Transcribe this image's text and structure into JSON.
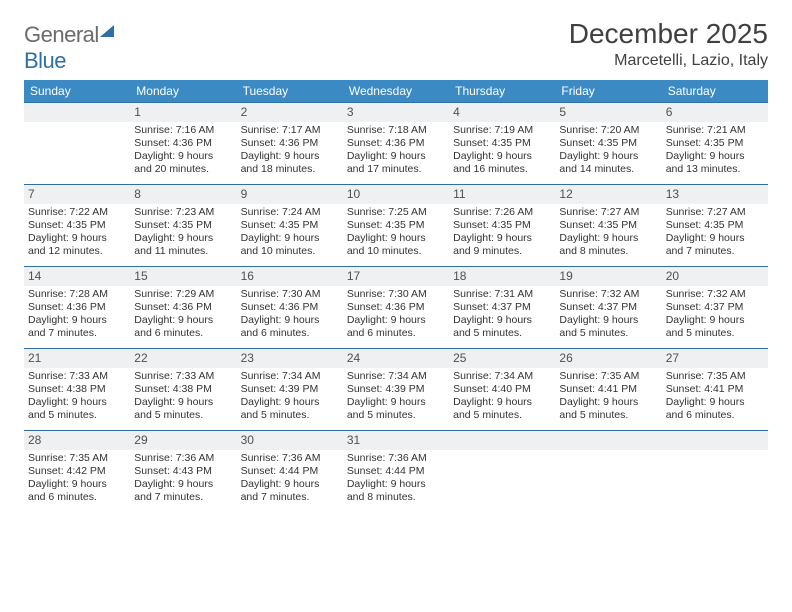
{
  "logo": {
    "word1": "General",
    "word2": "Blue"
  },
  "title": "December 2025",
  "location": "Marcetelli, Lazio, Italy",
  "colors": {
    "header_bg": "#3b8ac4",
    "daynum_bg": "#eef0f2",
    "rule": "#2f6fa8",
    "text": "#333333"
  },
  "dows": [
    "Sunday",
    "Monday",
    "Tuesday",
    "Wednesday",
    "Thursday",
    "Friday",
    "Saturday"
  ],
  "weeks": [
    [
      null,
      {
        "n": "1",
        "sr": "Sunrise: 7:16 AM",
        "ss": "Sunset: 4:36 PM",
        "dl": "Daylight: 9 hours and 20 minutes."
      },
      {
        "n": "2",
        "sr": "Sunrise: 7:17 AM",
        "ss": "Sunset: 4:36 PM",
        "dl": "Daylight: 9 hours and 18 minutes."
      },
      {
        "n": "3",
        "sr": "Sunrise: 7:18 AM",
        "ss": "Sunset: 4:36 PM",
        "dl": "Daylight: 9 hours and 17 minutes."
      },
      {
        "n": "4",
        "sr": "Sunrise: 7:19 AM",
        "ss": "Sunset: 4:35 PM",
        "dl": "Daylight: 9 hours and 16 minutes."
      },
      {
        "n": "5",
        "sr": "Sunrise: 7:20 AM",
        "ss": "Sunset: 4:35 PM",
        "dl": "Daylight: 9 hours and 14 minutes."
      },
      {
        "n": "6",
        "sr": "Sunrise: 7:21 AM",
        "ss": "Sunset: 4:35 PM",
        "dl": "Daylight: 9 hours and 13 minutes."
      }
    ],
    [
      {
        "n": "7",
        "sr": "Sunrise: 7:22 AM",
        "ss": "Sunset: 4:35 PM",
        "dl": "Daylight: 9 hours and 12 minutes."
      },
      {
        "n": "8",
        "sr": "Sunrise: 7:23 AM",
        "ss": "Sunset: 4:35 PM",
        "dl": "Daylight: 9 hours and 11 minutes."
      },
      {
        "n": "9",
        "sr": "Sunrise: 7:24 AM",
        "ss": "Sunset: 4:35 PM",
        "dl": "Daylight: 9 hours and 10 minutes."
      },
      {
        "n": "10",
        "sr": "Sunrise: 7:25 AM",
        "ss": "Sunset: 4:35 PM",
        "dl": "Daylight: 9 hours and 10 minutes."
      },
      {
        "n": "11",
        "sr": "Sunrise: 7:26 AM",
        "ss": "Sunset: 4:35 PM",
        "dl": "Daylight: 9 hours and 9 minutes."
      },
      {
        "n": "12",
        "sr": "Sunrise: 7:27 AM",
        "ss": "Sunset: 4:35 PM",
        "dl": "Daylight: 9 hours and 8 minutes."
      },
      {
        "n": "13",
        "sr": "Sunrise: 7:27 AM",
        "ss": "Sunset: 4:35 PM",
        "dl": "Daylight: 9 hours and 7 minutes."
      }
    ],
    [
      {
        "n": "14",
        "sr": "Sunrise: 7:28 AM",
        "ss": "Sunset: 4:36 PM",
        "dl": "Daylight: 9 hours and 7 minutes."
      },
      {
        "n": "15",
        "sr": "Sunrise: 7:29 AM",
        "ss": "Sunset: 4:36 PM",
        "dl": "Daylight: 9 hours and 6 minutes."
      },
      {
        "n": "16",
        "sr": "Sunrise: 7:30 AM",
        "ss": "Sunset: 4:36 PM",
        "dl": "Daylight: 9 hours and 6 minutes."
      },
      {
        "n": "17",
        "sr": "Sunrise: 7:30 AM",
        "ss": "Sunset: 4:36 PM",
        "dl": "Daylight: 9 hours and 6 minutes."
      },
      {
        "n": "18",
        "sr": "Sunrise: 7:31 AM",
        "ss": "Sunset: 4:37 PM",
        "dl": "Daylight: 9 hours and 5 minutes."
      },
      {
        "n": "19",
        "sr": "Sunrise: 7:32 AM",
        "ss": "Sunset: 4:37 PM",
        "dl": "Daylight: 9 hours and 5 minutes."
      },
      {
        "n": "20",
        "sr": "Sunrise: 7:32 AM",
        "ss": "Sunset: 4:37 PM",
        "dl": "Daylight: 9 hours and 5 minutes."
      }
    ],
    [
      {
        "n": "21",
        "sr": "Sunrise: 7:33 AM",
        "ss": "Sunset: 4:38 PM",
        "dl": "Daylight: 9 hours and 5 minutes."
      },
      {
        "n": "22",
        "sr": "Sunrise: 7:33 AM",
        "ss": "Sunset: 4:38 PM",
        "dl": "Daylight: 9 hours and 5 minutes."
      },
      {
        "n": "23",
        "sr": "Sunrise: 7:34 AM",
        "ss": "Sunset: 4:39 PM",
        "dl": "Daylight: 9 hours and 5 minutes."
      },
      {
        "n": "24",
        "sr": "Sunrise: 7:34 AM",
        "ss": "Sunset: 4:39 PM",
        "dl": "Daylight: 9 hours and 5 minutes."
      },
      {
        "n": "25",
        "sr": "Sunrise: 7:34 AM",
        "ss": "Sunset: 4:40 PM",
        "dl": "Daylight: 9 hours and 5 minutes."
      },
      {
        "n": "26",
        "sr": "Sunrise: 7:35 AM",
        "ss": "Sunset: 4:41 PM",
        "dl": "Daylight: 9 hours and 5 minutes."
      },
      {
        "n": "27",
        "sr": "Sunrise: 7:35 AM",
        "ss": "Sunset: 4:41 PM",
        "dl": "Daylight: 9 hours and 6 minutes."
      }
    ],
    [
      {
        "n": "28",
        "sr": "Sunrise: 7:35 AM",
        "ss": "Sunset: 4:42 PM",
        "dl": "Daylight: 9 hours and 6 minutes."
      },
      {
        "n": "29",
        "sr": "Sunrise: 7:36 AM",
        "ss": "Sunset: 4:43 PM",
        "dl": "Daylight: 9 hours and 7 minutes."
      },
      {
        "n": "30",
        "sr": "Sunrise: 7:36 AM",
        "ss": "Sunset: 4:44 PM",
        "dl": "Daylight: 9 hours and 7 minutes."
      },
      {
        "n": "31",
        "sr": "Sunrise: 7:36 AM",
        "ss": "Sunset: 4:44 PM",
        "dl": "Daylight: 9 hours and 8 minutes."
      },
      null,
      null,
      null
    ]
  ]
}
